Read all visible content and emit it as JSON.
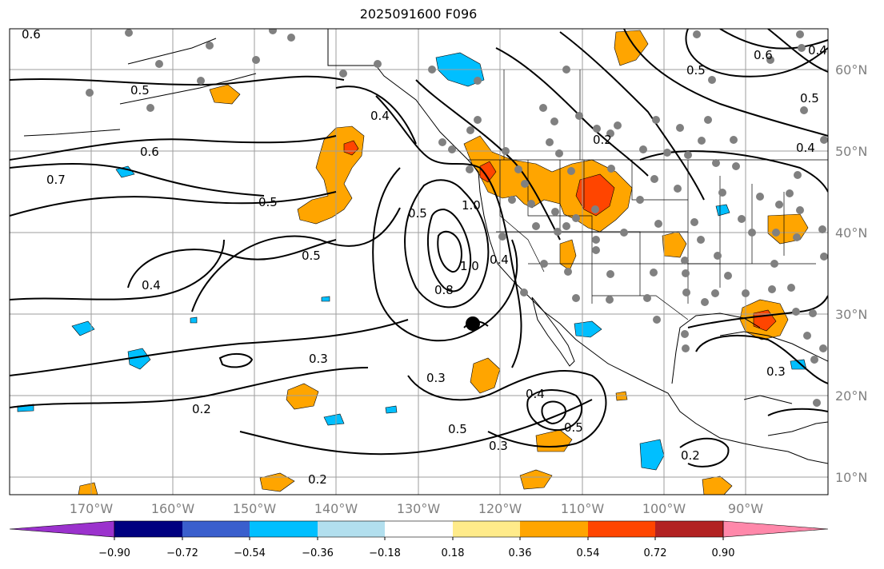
{
  "title": "2025091600 F096",
  "map": {
    "projection": "PlateCarree",
    "lon_range": [
      -180,
      -80
    ],
    "lat_range": [
      8,
      65
    ],
    "lon_labels": [
      "170°W",
      "160°W",
      "150°W",
      "140°W",
      "130°W",
      "120°W",
      "110°W",
      "100°W",
      "90°W"
    ],
    "lat_labels": [
      "60°N",
      "50°N",
      "40°N",
      "30°N",
      "20°N",
      "10°N"
    ],
    "gridlines": true,
    "marker": {
      "name": "center-point",
      "lon": -124,
      "lat": 29
    }
  },
  "contour_labels": [
    {
      "text": "0.6"
    },
    {
      "text": "0.5"
    },
    {
      "text": "0.6"
    },
    {
      "text": "0.7"
    },
    {
      "text": "0.5"
    },
    {
      "text": "0.5"
    },
    {
      "text": "0.4"
    },
    {
      "text": "0.3"
    },
    {
      "text": "0.2"
    },
    {
      "text": "0.4"
    },
    {
      "text": "0.5"
    },
    {
      "text": "1.0"
    },
    {
      "text": "0.8"
    },
    {
      "text": "1.0"
    },
    {
      "text": "0.4"
    },
    {
      "text": "0.3"
    },
    {
      "text": "0.4"
    },
    {
      "text": "0.5"
    },
    {
      "text": "0.5"
    },
    {
      "text": "0.3"
    },
    {
      "text": "0.2"
    },
    {
      "text": "0.2"
    },
    {
      "text": "0.2"
    },
    {
      "text": "0.3"
    },
    {
      "text": "0.5"
    },
    {
      "text": "0.6"
    },
    {
      "text": "0.5"
    },
    {
      "text": "0.4"
    },
    {
      "text": "0.4"
    }
  ],
  "colorbar": {
    "ticks": [
      "−0.90",
      "−0.72",
      "−0.54",
      "−0.36",
      "−0.18",
      "0.18",
      "0.36",
      "0.54",
      "0.72",
      "0.90"
    ],
    "colors": [
      "#9b32cd",
      "#000080",
      "#3a5fcd",
      "#00bfff",
      "#b2dfee",
      "#ffffff",
      "#ffeb8a",
      "#ffa500",
      "#ff4500",
      "#b22222",
      "#ff88aa"
    ]
  }
}
